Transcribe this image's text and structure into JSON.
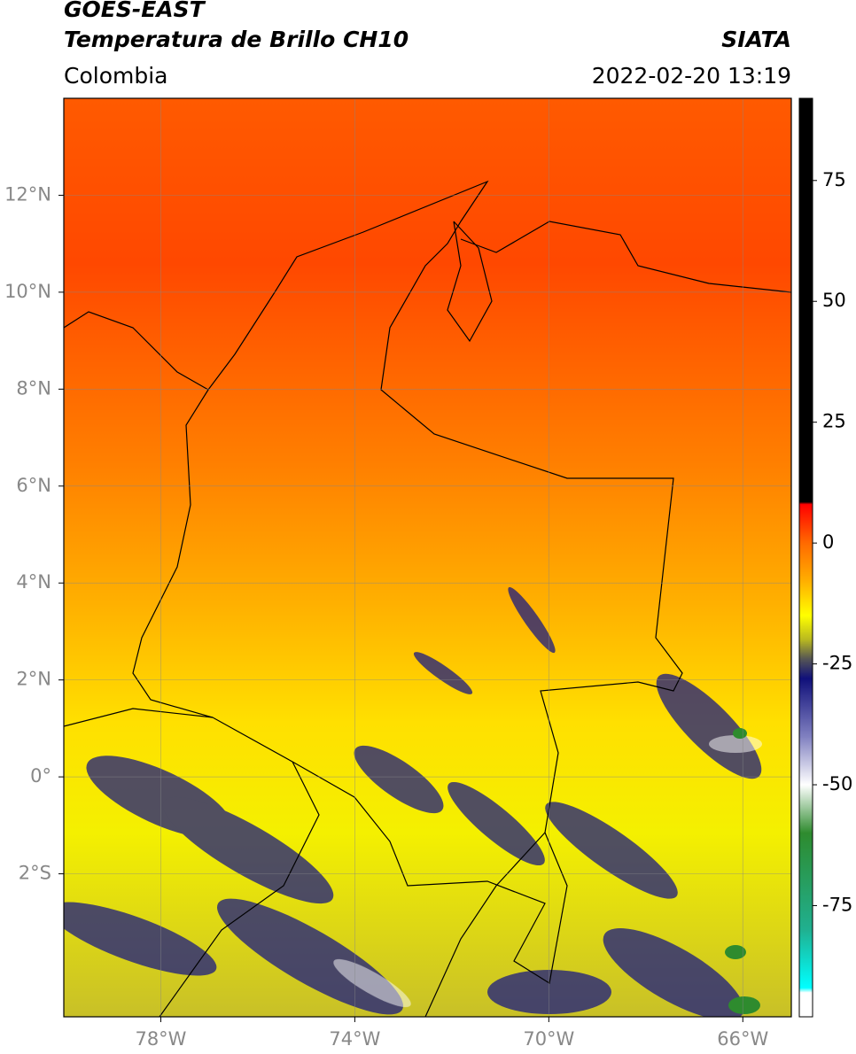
{
  "header": {
    "satellite": "GOES-EAST",
    "product": "Temperatura de Brillo CH10",
    "region": "Colombia",
    "source": "SIATA",
    "datetime": "2022-02-20 13:19"
  },
  "map": {
    "type": "map",
    "xlim": [
      -80,
      -65
    ],
    "ylim": [
      -4.95,
      14
    ],
    "xticks": [
      {
        "value": -78,
        "label": "78°W"
      },
      {
        "value": -74,
        "label": "74°W"
      },
      {
        "value": -70,
        "label": "70°W"
      },
      {
        "value": -66,
        "label": "66°W"
      }
    ],
    "yticks": [
      {
        "value": 12,
        "label": "12°N"
      },
      {
        "value": 10,
        "label": "10°N"
      },
      {
        "value": 8,
        "label": "8°N"
      },
      {
        "value": 6,
        "label": "6°N"
      },
      {
        "value": 4,
        "label": "4°N"
      },
      {
        "value": 2,
        "label": "2°N"
      },
      {
        "value": 0,
        "label": "0°"
      },
      {
        "value": -2,
        "label": "2°S"
      }
    ],
    "grid": true,
    "colorbar": {
      "lim": [
        -98,
        92
      ],
      "ticks": [
        75,
        50,
        25,
        0,
        -25,
        -50,
        -75
      ],
      "colormap": [
        {
          "value": 92,
          "color": "#000000"
        },
        {
          "value": 8.5,
          "color": "#000000"
        },
        {
          "value": 8,
          "color": "#ff0000"
        },
        {
          "value": 0,
          "color": "#ff6a00"
        },
        {
          "value": -8,
          "color": "#ffb000"
        },
        {
          "value": -15,
          "color": "#ffff00"
        },
        {
          "value": -20,
          "color": "#b8b820"
        },
        {
          "value": -24,
          "color": "#555555"
        },
        {
          "value": -28,
          "color": "#10107a"
        },
        {
          "value": -40,
          "color": "#8080c0"
        },
        {
          "value": -50,
          "color": "#ffffff"
        },
        {
          "value": -60,
          "color": "#2e8b2e"
        },
        {
          "value": -80,
          "color": "#20b090"
        },
        {
          "value": -92,
          "color": "#00ffff"
        },
        {
          "value": -93,
          "color": "#ffffff"
        },
        {
          "value": -98,
          "color": "#ffffff"
        }
      ]
    }
  }
}
